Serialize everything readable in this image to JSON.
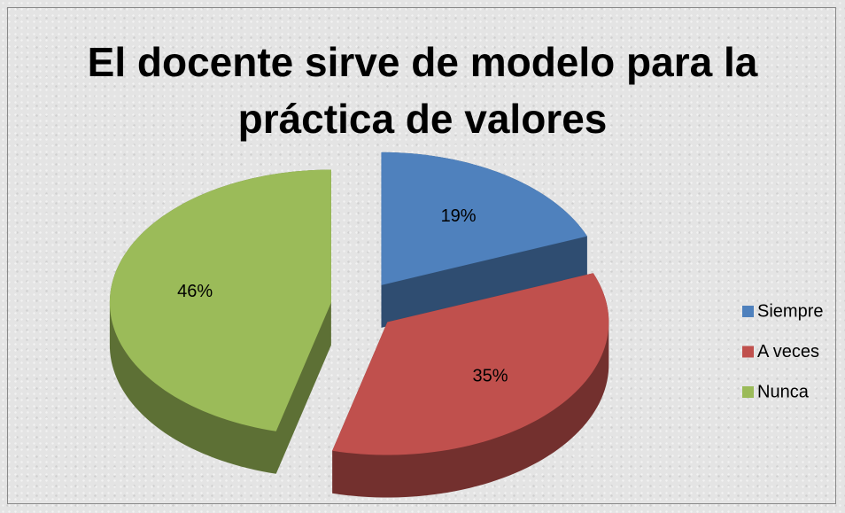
{
  "chart_data": {
    "type": "pie",
    "title": "El docente sirve de modelo para la práctica de valores",
    "categories": [
      "Siempre",
      "A veces",
      "Nunca"
    ],
    "values": [
      19,
      35,
      46
    ],
    "value_labels": [
      "19%",
      "35%",
      "46%"
    ],
    "colors": [
      "#4f81bd",
      "#c0504d",
      "#9bbb59"
    ],
    "legend": "right",
    "exploded": true,
    "three_d": true
  }
}
